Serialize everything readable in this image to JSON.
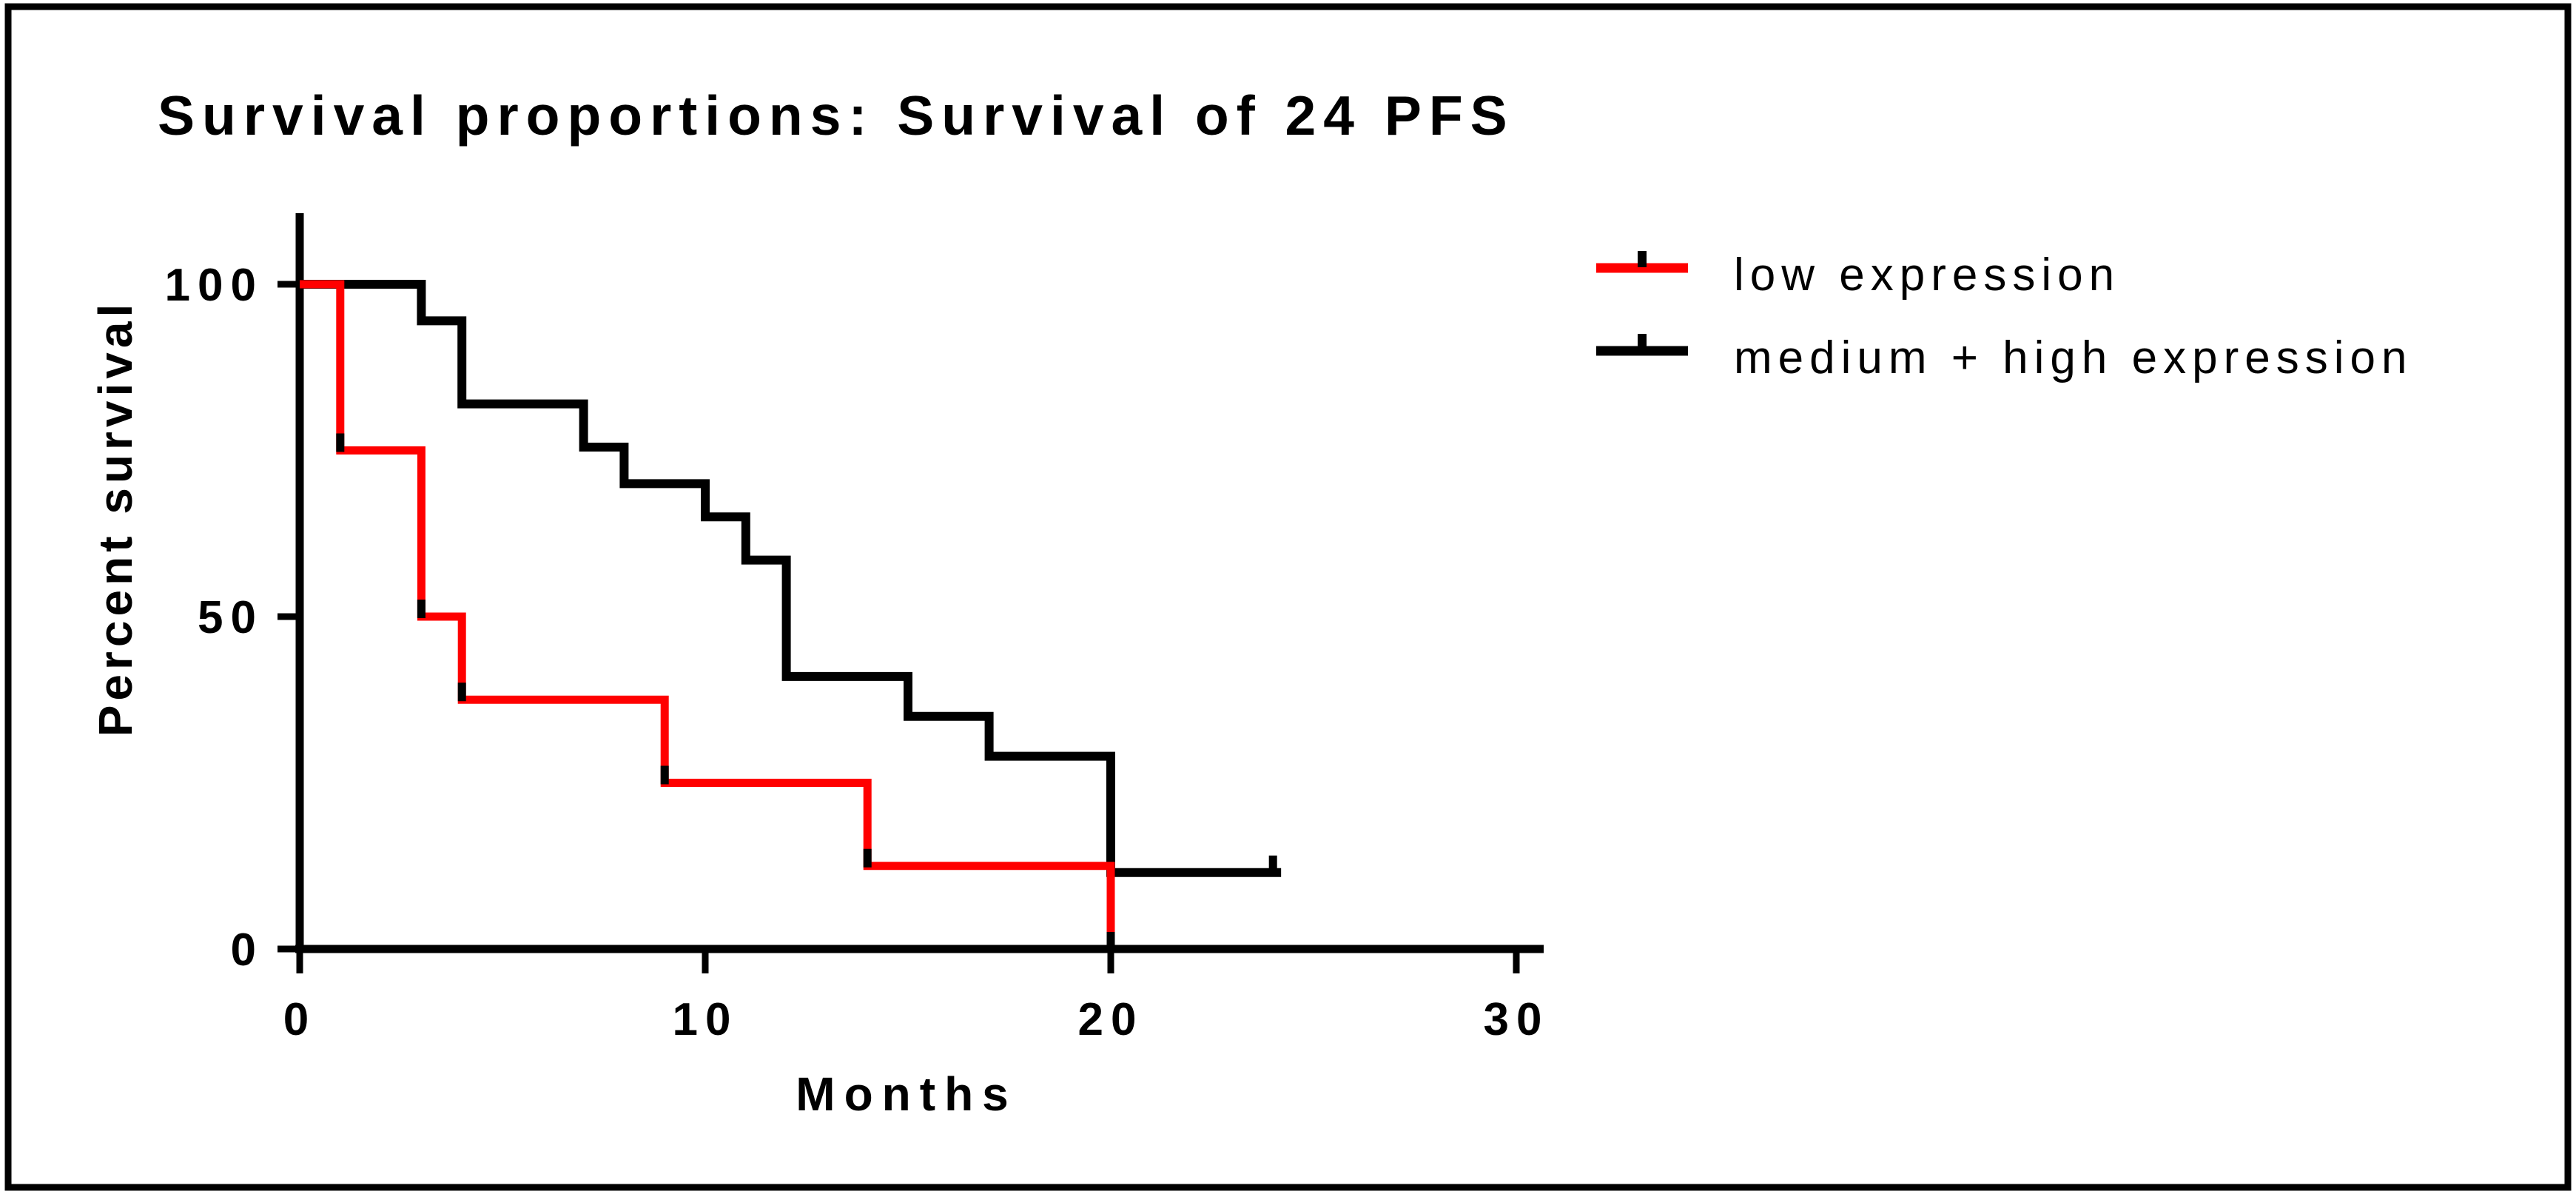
{
  "figure": {
    "background_color": "#ffffff",
    "border_color": "#000000"
  },
  "chart_data": {
    "type": "line",
    "chart_kind": "kaplan-meier-survival-step",
    "title": "Survival proportions: Survival of 24 PFS",
    "xlabel": "Months",
    "ylabel": "Percent survival",
    "xlim": [
      0,
      30
    ],
    "ylim": [
      0,
      100
    ],
    "x_ticks": [
      0,
      10,
      20,
      30
    ],
    "y_ticks": [
      100,
      50,
      0
    ],
    "grid": false,
    "legend_position": "top-right",
    "axis_color": "#000000",
    "censor_tick_color": "#000000",
    "series": [
      {
        "name": "low expression",
        "color": "#ff0000",
        "draw_order": 2,
        "steps": [
          [
            0,
            100
          ],
          [
            1,
            75
          ],
          [
            3,
            50
          ],
          [
            4,
            37.5
          ],
          [
            9,
            25
          ],
          [
            14,
            12.5
          ],
          [
            20,
            0
          ]
        ],
        "end_x": 20,
        "censor_ticks": [
          [
            1,
            75
          ],
          [
            3,
            50
          ],
          [
            4,
            37.5
          ],
          [
            9,
            25
          ],
          [
            14,
            12.5
          ],
          [
            20,
            0
          ]
        ]
      },
      {
        "name": "medium + high expression",
        "color": "#000000",
        "draw_order": 1,
        "steps": [
          [
            0,
            100
          ],
          [
            3,
            94.5
          ],
          [
            4,
            82
          ],
          [
            7,
            75.5
          ],
          [
            8,
            70
          ],
          [
            10,
            65
          ],
          [
            11,
            58.5
          ],
          [
            12,
            41
          ],
          [
            15,
            35
          ],
          [
            17,
            29
          ],
          [
            20,
            11.5
          ]
        ],
        "end_x": 24.2,
        "censor_ticks": [
          [
            24,
            11.5
          ]
        ]
      }
    ]
  }
}
